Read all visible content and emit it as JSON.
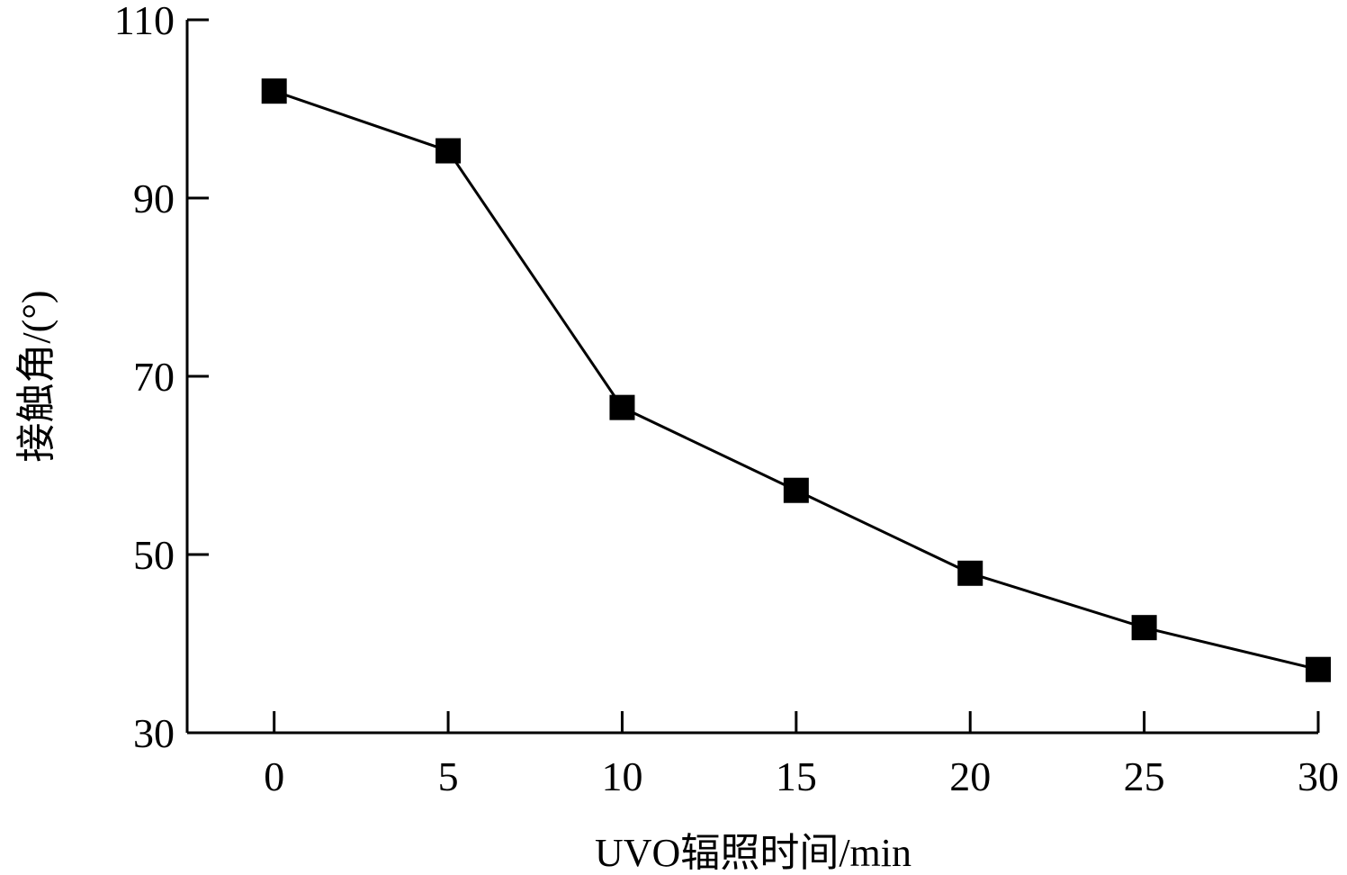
{
  "chart_data": {
    "type": "line",
    "title": "",
    "xlabel": "UVO辐照时间/min",
    "ylabel": "接触角/(°)",
    "xlim": [
      -2.5,
      30
    ],
    "ylim": [
      30,
      110
    ],
    "xticks": [
      0,
      5,
      10,
      15,
      20,
      25,
      30
    ],
    "yticks": [
      30,
      50,
      70,
      90,
      110
    ],
    "xtick_labels": [
      "0",
      "5",
      "10",
      "15",
      "20",
      "25",
      "30"
    ],
    "ytick_labels": [
      "30",
      "50",
      "70",
      "90",
      "110"
    ],
    "grid": false,
    "legend": false,
    "marker": "square",
    "color": "#000000",
    "series": [
      {
        "x": [
          0,
          5,
          10,
          15,
          20,
          25,
          30
        ],
        "y": [
          102,
          95.3,
          66.5,
          57.2,
          47.9,
          41.8,
          37.1
        ]
      }
    ]
  }
}
